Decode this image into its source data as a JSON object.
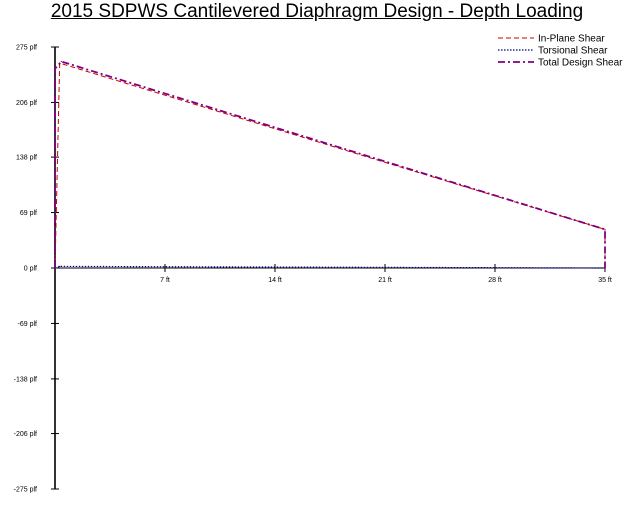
{
  "chart_data": {
    "type": "line",
    "title": "2015 SDPWS Cantilevered Diaphragm Design - Depth Loading",
    "xlabel": "",
    "ylabel": "",
    "xlim": [
      0,
      35
    ],
    "ylim": [
      -275,
      275
    ],
    "x_ticks": [
      7,
      14,
      21,
      28,
      35
    ],
    "x_tick_labels": [
      "7 ft",
      "14 ft",
      "21 ft",
      "28 ft",
      "35 ft"
    ],
    "y_ticks": [
      275,
      206,
      138,
      69,
      0,
      -69,
      -138,
      -206,
      -275
    ],
    "y_tick_labels": [
      "275 plf",
      "206 plf",
      "138 plf",
      "69 plf",
      "0 plf",
      "-69 plf",
      "-138 plf",
      "-206 plf",
      "-275 plf"
    ],
    "grid": false,
    "legend_position": "top-right",
    "series": [
      {
        "name": "In-Plane Shear",
        "color": "#cc0000",
        "style": "dashed",
        "x": [
          0,
          0.3,
          35,
          35
        ],
        "y": [
          0,
          255,
          48,
          0
        ]
      },
      {
        "name": "Torsional Shear",
        "color": "#00008b",
        "style": "dotted",
        "x": [
          0,
          0.3,
          35,
          35
        ],
        "y": [
          0,
          2,
          0,
          0
        ]
      },
      {
        "name": "Total Design Shear",
        "color": "#7f007f",
        "style": "dashdot",
        "x": [
          0,
          0,
          0.4,
          35,
          35
        ],
        "y": [
          0,
          248,
          257,
          48,
          0
        ]
      }
    ]
  }
}
